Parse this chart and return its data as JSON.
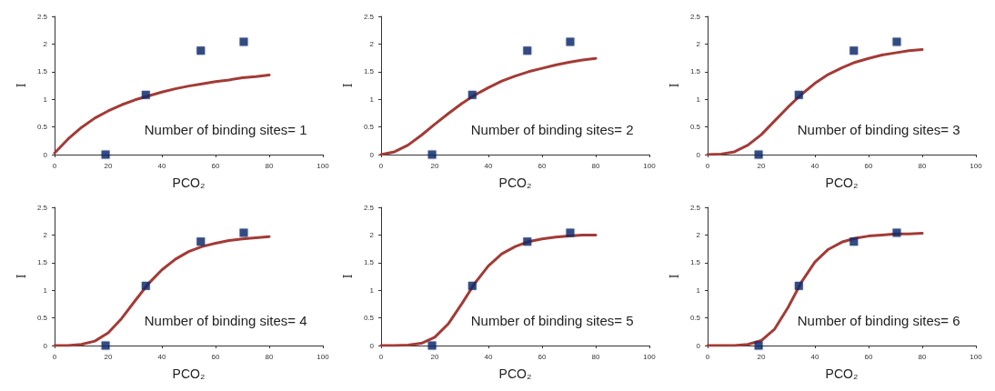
{
  "chart_data": [
    {
      "type": "scatter",
      "xlabel": "PCO₂",
      "ylabel": "I",
      "annotations": [
        "Number of binding sites= 1"
      ],
      "xlim": [
        0,
        100
      ],
      "xticks": [
        0,
        20,
        40,
        60,
        80,
        100
      ],
      "ylim": [
        0,
        2.5
      ],
      "yticks": [
        0,
        0.5,
        1,
        1.5,
        2,
        2.5
      ],
      "grid": false,
      "series": [
        {
          "marker": "square",
          "color": "#0b2a6e",
          "x": [
            19,
            34,
            54.5,
            70.5
          ],
          "values": [
            0,
            1.08,
            1.88,
            2.04
          ]
        },
        {
          "type": "line",
          "marker": "none",
          "color": "#a33b36",
          "x": [
            0,
            5,
            10,
            15,
            20,
            25,
            30,
            35,
            40,
            45,
            50,
            55,
            60,
            65,
            70,
            75,
            80
          ],
          "values": [
            0.03,
            0.28,
            0.49,
            0.66,
            0.79,
            0.9,
            0.99,
            1.06,
            1.13,
            1.19,
            1.24,
            1.28,
            1.32,
            1.35,
            1.39,
            1.41,
            1.44
          ]
        }
      ]
    },
    {
      "type": "scatter",
      "xlabel": "PCO₂",
      "ylabel": "I",
      "annotations": [
        "Number of binding sites= 2"
      ],
      "xlim": [
        0,
        100
      ],
      "xticks": [
        0,
        20,
        40,
        60,
        80,
        100
      ],
      "ylim": [
        0,
        2.5
      ],
      "yticks": [
        0,
        0.5,
        1,
        1.5,
        2,
        2.5
      ],
      "grid": false,
      "series": [
        {
          "marker": "square",
          "color": "#0b2a6e",
          "x": [
            19,
            34,
            54.5,
            70.5
          ],
          "values": [
            0,
            1.08,
            1.88,
            2.04
          ]
        },
        {
          "type": "line",
          "marker": "none",
          "color": "#a33b36",
          "x": [
            0,
            5,
            10,
            15,
            20,
            25,
            30,
            35,
            40,
            45,
            50,
            55,
            60,
            65,
            70,
            75,
            80
          ],
          "values": [
            0,
            0.05,
            0.17,
            0.35,
            0.55,
            0.74,
            0.92,
            1.08,
            1.21,
            1.33,
            1.42,
            1.5,
            1.56,
            1.62,
            1.67,
            1.71,
            1.74
          ]
        }
      ]
    },
    {
      "type": "scatter",
      "xlabel": "PCO₂",
      "ylabel": "I",
      "annotations": [
        "Number of binding sites= 3"
      ],
      "xlim": [
        0,
        100
      ],
      "xticks": [
        0,
        20,
        40,
        60,
        80,
        100
      ],
      "ylim": [
        0,
        2.5
      ],
      "yticks": [
        0,
        0.5,
        1,
        1.5,
        2,
        2.5
      ],
      "grid": false,
      "series": [
        {
          "marker": "square",
          "color": "#0b2a6e",
          "x": [
            19,
            34,
            54.5,
            70.5
          ],
          "values": [
            0,
            1.08,
            1.88,
            2.04
          ]
        },
        {
          "type": "line",
          "marker": "none",
          "color": "#a33b36",
          "x": [
            0,
            5,
            10,
            15,
            20,
            25,
            30,
            35,
            40,
            45,
            50,
            55,
            60,
            65,
            70,
            75,
            80
          ],
          "values": [
            0,
            0.01,
            0.05,
            0.17,
            0.36,
            0.61,
            0.86,
            1.09,
            1.29,
            1.45,
            1.57,
            1.67,
            1.74,
            1.8,
            1.84,
            1.88,
            1.9
          ]
        }
      ]
    },
    {
      "type": "scatter",
      "xlabel": "PCO₂",
      "ylabel": "I",
      "annotations": [
        "Number of binding sites= 4"
      ],
      "xlim": [
        0,
        100
      ],
      "xticks": [
        0,
        20,
        40,
        60,
        80,
        100
      ],
      "ylim": [
        0,
        2.5
      ],
      "yticks": [
        0,
        0.5,
        1,
        1.5,
        2,
        2.5
      ],
      "grid": false,
      "series": [
        {
          "marker": "square",
          "color": "#0b2a6e",
          "x": [
            19,
            34,
            54.5,
            70.5
          ],
          "values": [
            0,
            1.08,
            1.88,
            2.04
          ]
        },
        {
          "type": "line",
          "marker": "none",
          "color": "#a33b36",
          "x": [
            0,
            5,
            10,
            15,
            20,
            25,
            30,
            35,
            40,
            45,
            50,
            55,
            60,
            65,
            70,
            75,
            80
          ],
          "values": [
            0,
            0,
            0.02,
            0.08,
            0.23,
            0.49,
            0.81,
            1.12,
            1.37,
            1.56,
            1.7,
            1.79,
            1.85,
            1.9,
            1.93,
            1.95,
            1.97
          ]
        }
      ]
    },
    {
      "type": "scatter",
      "xlabel": "PCO₂",
      "ylabel": "I",
      "annotations": [
        "Number of binding sites= 5"
      ],
      "xlim": [
        0,
        100
      ],
      "xticks": [
        0,
        20,
        40,
        60,
        80,
        100
      ],
      "ylim": [
        0,
        2.5
      ],
      "yticks": [
        0,
        0.5,
        1,
        1.5,
        2,
        2.5
      ],
      "grid": false,
      "series": [
        {
          "marker": "square",
          "color": "#0b2a6e",
          "x": [
            19,
            34,
            54.5,
            70.5
          ],
          "values": [
            0,
            1.08,
            1.88,
            2.04
          ]
        },
        {
          "type": "line",
          "marker": "none",
          "color": "#a33b36",
          "x": [
            0,
            5,
            10,
            15,
            20,
            25,
            30,
            35,
            40,
            45,
            50,
            55,
            60,
            65,
            70,
            75,
            80
          ],
          "values": [
            0,
            0,
            0.01,
            0.04,
            0.15,
            0.39,
            0.75,
            1.13,
            1.44,
            1.66,
            1.79,
            1.88,
            1.93,
            1.96,
            1.98,
            2,
            2
          ]
        }
      ]
    },
    {
      "type": "scatter",
      "xlabel": "PCO₂",
      "ylabel": "I",
      "annotations": [
        "Number of binding sites= 6"
      ],
      "xlim": [
        0,
        100
      ],
      "xticks": [
        0,
        20,
        40,
        60,
        80,
        100
      ],
      "ylim": [
        0,
        2.5
      ],
      "yticks": [
        0,
        0.5,
        1,
        1.5,
        2,
        2.5
      ],
      "grid": false,
      "series": [
        {
          "marker": "square",
          "color": "#0b2a6e",
          "x": [
            19,
            34,
            54.5,
            70.5
          ],
          "values": [
            0,
            1.08,
            1.88,
            2.04
          ]
        },
        {
          "type": "line",
          "marker": "none",
          "color": "#a33b36",
          "x": [
            0,
            5,
            10,
            15,
            20,
            25,
            30,
            35,
            40,
            45,
            50,
            55,
            60,
            65,
            70,
            75,
            80
          ],
          "values": [
            0,
            0,
            0,
            0.02,
            0.09,
            0.3,
            0.69,
            1.15,
            1.51,
            1.74,
            1.87,
            1.94,
            1.98,
            2,
            2.02,
            2.02,
            2.03
          ]
        }
      ]
    }
  ]
}
